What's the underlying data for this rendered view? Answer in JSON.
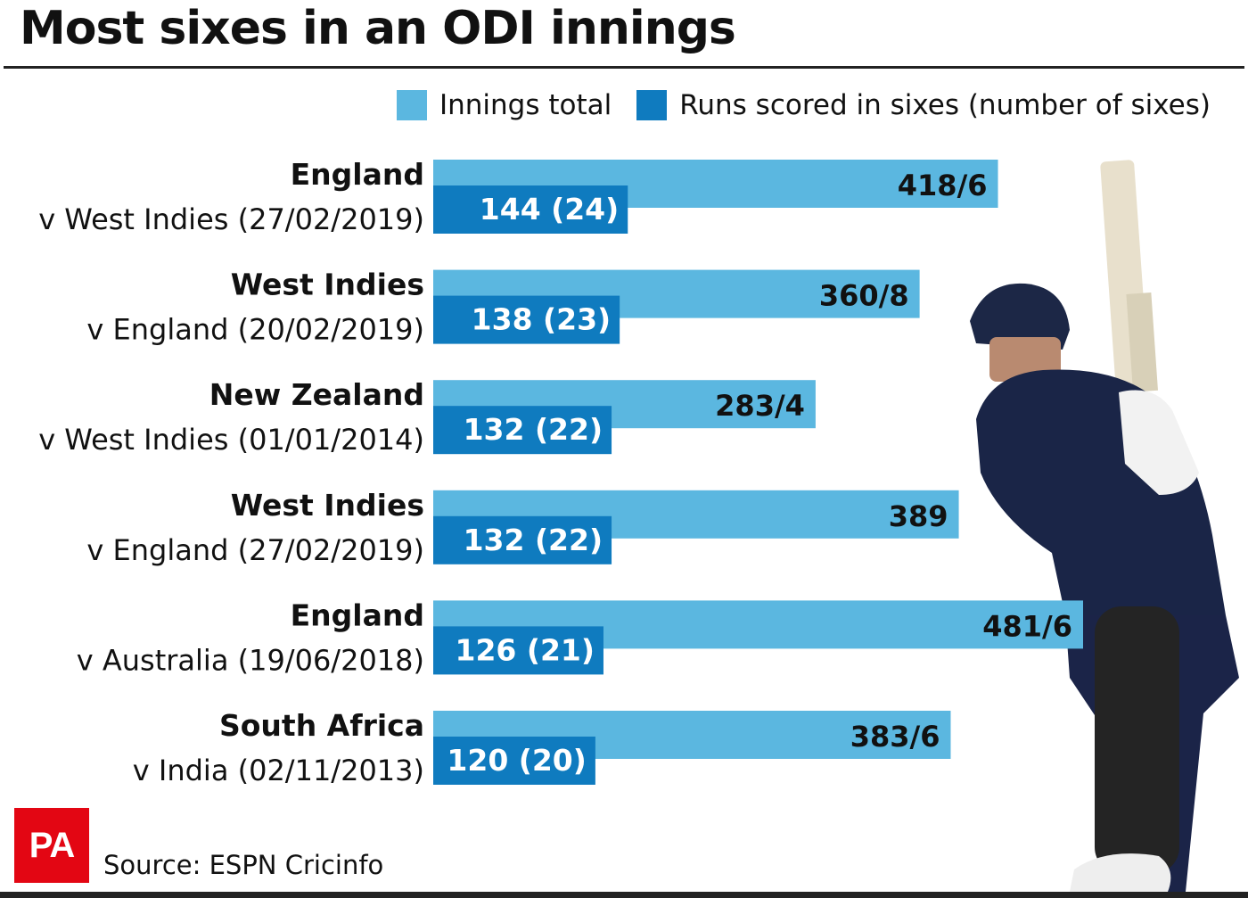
{
  "title": "Most sixes in an ODI innings",
  "legend": {
    "total_label": "Innings total",
    "sixes_label": "Runs scored in sixes (number of sixes)"
  },
  "colors": {
    "total": "#5bb7e0",
    "sixes": "#0f7bbf"
  },
  "source": "Source: ESPN Cricinfo",
  "logo_text": "PA",
  "chart_data": {
    "type": "bar",
    "orientation": "horizontal",
    "title": "Most sixes in an ODI innings",
    "categories": [
      "England v West Indies (27/02/2019)",
      "West Indies v England (20/02/2019)",
      "New Zealand v West Indies (01/01/2014)",
      "West Indies v England (27/02/2019)",
      "England v Australia (19/06/2018)",
      "South Africa v India (02/11/2013)"
    ],
    "rows": [
      {
        "team": "England",
        "match": "v West Indies (27/02/2019)",
        "total": 418,
        "total_label": "418/6",
        "six_runs": 144,
        "sixes": 24,
        "six_label": "144 (24)"
      },
      {
        "team": "West Indies",
        "match": "v England (20/02/2019)",
        "total": 360,
        "total_label": "360/8",
        "six_runs": 138,
        "sixes": 23,
        "six_label": "138 (23)"
      },
      {
        "team": "New Zealand",
        "match": "v West Indies (01/01/2014)",
        "total": 283,
        "total_label": "283/4",
        "six_runs": 132,
        "sixes": 22,
        "six_label": "132 (22)"
      },
      {
        "team": "West Indies",
        "match": "v England (27/02/2019)",
        "total": 389,
        "total_label": "389",
        "six_runs": 132,
        "sixes": 22,
        "six_label": "132 (22)"
      },
      {
        "team": "England",
        "match": "v Australia (19/06/2018)",
        "total": 481,
        "total_label": "481/6",
        "six_runs": 126,
        "sixes": 21,
        "six_label": "126 (21)"
      },
      {
        "team": "South Africa",
        "match": "v India (02/11/2013)",
        "total": 383,
        "total_label": "383/6",
        "six_runs": 120,
        "sixes": 20,
        "six_label": "120 (20)"
      }
    ],
    "series": [
      {
        "name": "Innings total",
        "values": [
          418,
          360,
          283,
          389,
          481,
          383
        ]
      },
      {
        "name": "Runs scored in sixes (number of sixes)",
        "values": [
          144,
          138,
          132,
          132,
          126,
          120
        ]
      }
    ],
    "xlim": [
      0,
      481
    ],
    "legend_position": "top-right",
    "grid": false
  }
}
